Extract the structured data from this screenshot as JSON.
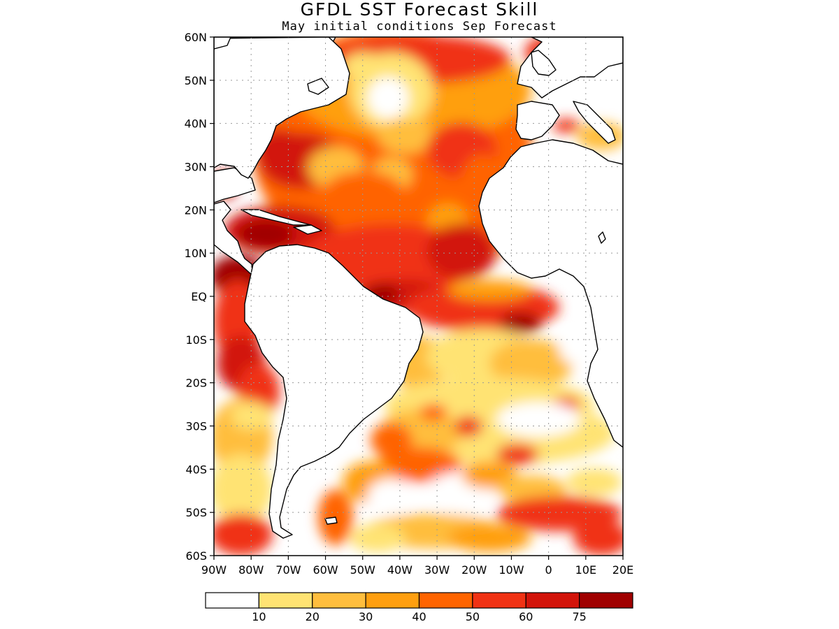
{
  "title": "GFDL SST Forecast Skill",
  "subtitle": "May initial conditions   Sep Forecast",
  "lat_labels": [
    "60N",
    "50N",
    "40N",
    "30N",
    "20N",
    "10N",
    "EQ",
    "10S",
    "20S",
    "30S",
    "40S",
    "50S",
    "60S"
  ],
  "lon_labels": [
    "90W",
    "80W",
    "70W",
    "60W",
    "50W",
    "40W",
    "30W",
    "20W",
    "10W",
    "0",
    "10E",
    "20E"
  ],
  "colorbar": {
    "labels": [
      "10",
      "20",
      "30",
      "40",
      "50",
      "60",
      "75"
    ],
    "colors": [
      "#ffffff",
      "#ffe373",
      "#ffbe3e",
      "#ff9f10",
      "#ff6400",
      "#f03214",
      "#d2140a",
      "#a00000"
    ]
  },
  "colors": {
    "land": "#ffffff",
    "coastline": "#000000",
    "grid": "#999999"
  }
}
